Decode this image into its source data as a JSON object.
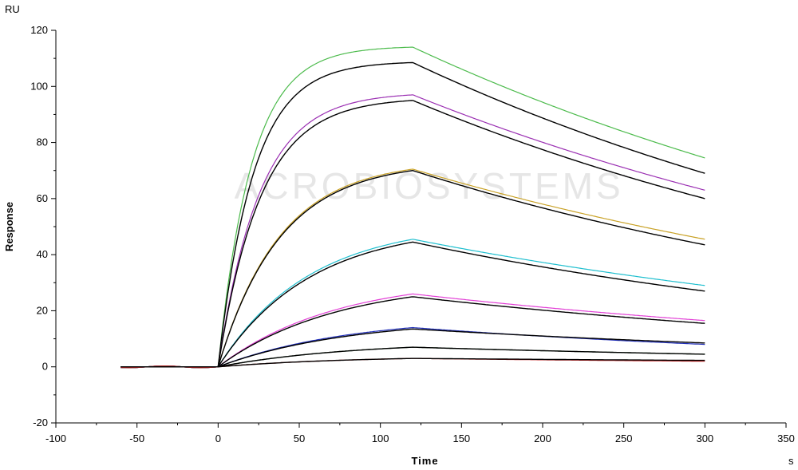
{
  "chart_data": {
    "type": "line",
    "xlabel": "Time",
    "ylabel": "Response",
    "x_unit": "s",
    "y_unit": "RU",
    "xlim": [
      -100,
      350
    ],
    "ylim": [
      -20,
      120
    ],
    "x_ticks": [
      -100,
      -50,
      0,
      50,
      100,
      150,
      200,
      250,
      300,
      350
    ],
    "y_ticks": [
      -20,
      0,
      20,
      40,
      60,
      80,
      100,
      120
    ],
    "grid": false,
    "legend": "none",
    "watermark": "ACROBIOSYSTEMS",
    "phases": {
      "baseline_start": -60,
      "association_start": 0,
      "dissociation_start": 120,
      "end": 300
    },
    "series": [
      {
        "color": "#4cbb4c",
        "values": {
          "plateau": 114,
          "end": 74.5
        }
      },
      {
        "color": "#000000",
        "values": {
          "plateau": 108.5,
          "end": 69
        }
      },
      {
        "color": "#9b30b3",
        "values": {
          "plateau": 97,
          "end": 63
        }
      },
      {
        "color": "#000000",
        "values": {
          "plateau": 95,
          "end": 60
        }
      },
      {
        "color": "#c9a227",
        "values": {
          "plateau": 70.5,
          "end": 45.5
        }
      },
      {
        "color": "#000000",
        "values": {
          "plateau": 70,
          "end": 43.5
        }
      },
      {
        "color": "#1fbfcf",
        "values": {
          "plateau": 45.5,
          "end": 29
        }
      },
      {
        "color": "#000000",
        "values": {
          "plateau": 44.5,
          "end": 27
        }
      },
      {
        "color": "#e23fd6",
        "values": {
          "plateau": 26,
          "end": 16.5
        }
      },
      {
        "color": "#000000",
        "values": {
          "plateau": 25,
          "end": 15.5
        }
      },
      {
        "color": "#1f2db8",
        "values": {
          "plateau": 14,
          "end": 8
        }
      },
      {
        "color": "#000000",
        "values": {
          "plateau": 13.5,
          "end": 8.5
        }
      },
      {
        "color": "#1d6b2a",
        "values": {
          "plateau": 7,
          "end": 4.5
        }
      },
      {
        "color": "#000000",
        "values": {
          "plateau": 7,
          "end": 4.5
        }
      },
      {
        "color": "#c21f1f",
        "values": {
          "plateau": 3,
          "end": 2
        }
      },
      {
        "color": "#000000",
        "values": {
          "plateau": 3,
          "end": 2.3
        }
      }
    ]
  }
}
